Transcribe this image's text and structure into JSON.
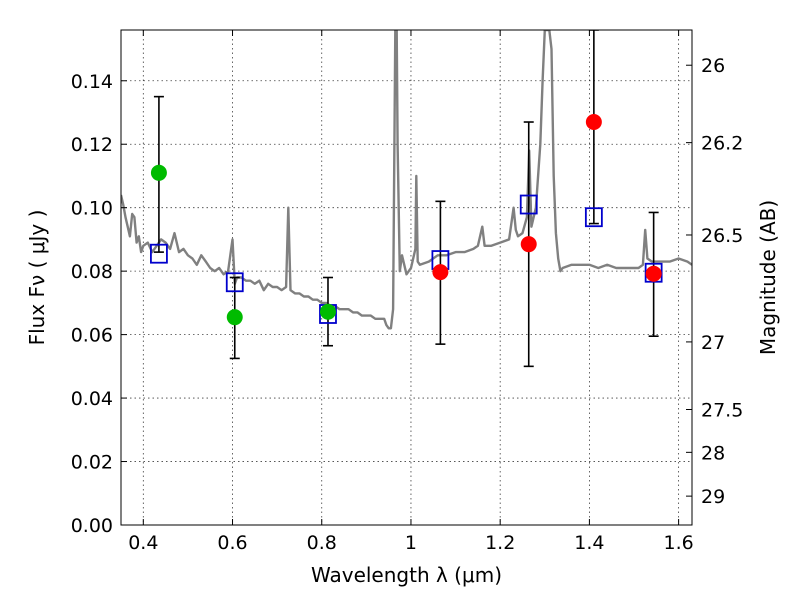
{
  "chart_data": {
    "type": "scatter",
    "xlabel": "Wavelength  λ (μm)",
    "ylabel": "Flux  Fν  ( μJy )",
    "y2label": "Magnitude (AB)",
    "xlim": [
      0.35,
      1.63
    ],
    "ylim": [
      0.0,
      0.156
    ],
    "grid": true,
    "x_ticks": [
      0.4,
      0.6,
      0.8,
      1.0,
      1.2,
      1.4,
      1.6
    ],
    "x_tick_labels": [
      "0.4",
      "0.6",
      "0.8",
      "1",
      "1.2",
      "1.4",
      "1.6"
    ],
    "y_ticks": [
      0.0,
      0.02,
      0.04,
      0.06,
      0.08,
      0.1,
      0.12,
      0.14
    ],
    "y_tick_labels": [
      "0.00",
      "0.02",
      "0.04",
      "0.06",
      "0.08",
      "0.10",
      "0.12",
      "0.14"
    ],
    "y2_ticks": [
      {
        "label": "26",
        "flux": 0.1449
      },
      {
        "label": "26.2",
        "flux": 0.1205
      },
      {
        "label": "26.5",
        "flux": 0.0914
      },
      {
        "label": "27",
        "flux": 0.0577
      },
      {
        "label": "27.5",
        "flux": 0.0364
      },
      {
        "label": "28",
        "flux": 0.0229
      },
      {
        "label": "29",
        "flux": 0.0091
      }
    ],
    "colors": {
      "green": "#00bb00",
      "red": "#ff0000",
      "model_box": "#0000cc",
      "spectrum": "#808080",
      "errorbar": "#000000"
    },
    "spectrum": [
      [
        0.35,
        0.104
      ],
      [
        0.355,
        0.101
      ],
      [
        0.36,
        0.097
      ],
      [
        0.365,
        0.094
      ],
      [
        0.37,
        0.091
      ],
      [
        0.375,
        0.098
      ],
      [
        0.38,
        0.097
      ],
      [
        0.385,
        0.089
      ],
      [
        0.39,
        0.091
      ],
      [
        0.395,
        0.086
      ],
      [
        0.4,
        0.088
      ],
      [
        0.41,
        0.089
      ],
      [
        0.42,
        0.086
      ],
      [
        0.43,
        0.088
      ],
      [
        0.44,
        0.09
      ],
      [
        0.45,
        0.089
      ],
      [
        0.46,
        0.087
      ],
      [
        0.47,
        0.092
      ],
      [
        0.48,
        0.086
      ],
      [
        0.49,
        0.087
      ],
      [
        0.5,
        0.085
      ],
      [
        0.51,
        0.084
      ],
      [
        0.52,
        0.082
      ],
      [
        0.53,
        0.085
      ],
      [
        0.54,
        0.083
      ],
      [
        0.55,
        0.081
      ],
      [
        0.56,
        0.08
      ],
      [
        0.57,
        0.081
      ],
      [
        0.58,
        0.079
      ],
      [
        0.59,
        0.08
      ],
      [
        0.6,
        0.09
      ],
      [
        0.605,
        0.076
      ],
      [
        0.61,
        0.078
      ],
      [
        0.62,
        0.078
      ],
      [
        0.63,
        0.077
      ],
      [
        0.64,
        0.077
      ],
      [
        0.65,
        0.076
      ],
      [
        0.66,
        0.077
      ],
      [
        0.67,
        0.074
      ],
      [
        0.68,
        0.076
      ],
      [
        0.69,
        0.075
      ],
      [
        0.7,
        0.075
      ],
      [
        0.71,
        0.074
      ],
      [
        0.72,
        0.075
      ],
      [
        0.725,
        0.1
      ],
      [
        0.73,
        0.074
      ],
      [
        0.74,
        0.073
      ],
      [
        0.75,
        0.073
      ],
      [
        0.76,
        0.072
      ],
      [
        0.77,
        0.072
      ],
      [
        0.78,
        0.071
      ],
      [
        0.79,
        0.071
      ],
      [
        0.8,
        0.07
      ],
      [
        0.81,
        0.07
      ],
      [
        0.82,
        0.069
      ],
      [
        0.83,
        0.069
      ],
      [
        0.84,
        0.068
      ],
      [
        0.85,
        0.068
      ],
      [
        0.86,
        0.068
      ],
      [
        0.87,
        0.067
      ],
      [
        0.88,
        0.067
      ],
      [
        0.89,
        0.066
      ],
      [
        0.9,
        0.066
      ],
      [
        0.91,
        0.066
      ],
      [
        0.92,
        0.065
      ],
      [
        0.93,
        0.065
      ],
      [
        0.94,
        0.065
      ],
      [
        0.945,
        0.063
      ],
      [
        0.95,
        0.062
      ],
      [
        0.955,
        0.062
      ],
      [
        0.96,
        0.068
      ],
      [
        0.965,
        0.156
      ],
      [
        0.968,
        0.156
      ],
      [
        0.97,
        0.12
      ],
      [
        0.975,
        0.08
      ],
      [
        0.98,
        0.085
      ],
      [
        0.99,
        0.079
      ],
      [
        1.0,
        0.081
      ],
      [
        1.01,
        0.087
      ],
      [
        1.012,
        0.11
      ],
      [
        1.015,
        0.083
      ],
      [
        1.02,
        0.082
      ],
      [
        1.04,
        0.083
      ],
      [
        1.06,
        0.085
      ],
      [
        1.08,
        0.085
      ],
      [
        1.1,
        0.086
      ],
      [
        1.12,
        0.086
      ],
      [
        1.14,
        0.087
      ],
      [
        1.15,
        0.088
      ],
      [
        1.16,
        0.094
      ],
      [
        1.165,
        0.088
      ],
      [
        1.18,
        0.088
      ],
      [
        1.2,
        0.089
      ],
      [
        1.22,
        0.09
      ],
      [
        1.23,
        0.1
      ],
      [
        1.235,
        0.093
      ],
      [
        1.24,
        0.091
      ],
      [
        1.25,
        0.092
      ],
      [
        1.26,
        0.097
      ],
      [
        1.265,
        0.118
      ],
      [
        1.27,
        0.094
      ],
      [
        1.28,
        0.1
      ],
      [
        1.29,
        0.12
      ],
      [
        1.295,
        0.14
      ],
      [
        1.3,
        0.156
      ],
      [
        1.31,
        0.156
      ],
      [
        1.315,
        0.15
      ],
      [
        1.32,
        0.11
      ],
      [
        1.325,
        0.092
      ],
      [
        1.33,
        0.084
      ],
      [
        1.335,
        0.08
      ],
      [
        1.34,
        0.081
      ],
      [
        1.36,
        0.082
      ],
      [
        1.38,
        0.082
      ],
      [
        1.4,
        0.082
      ],
      [
        1.42,
        0.081
      ],
      [
        1.44,
        0.082
      ],
      [
        1.46,
        0.081
      ],
      [
        1.48,
        0.081
      ],
      [
        1.5,
        0.081
      ],
      [
        1.51,
        0.081
      ],
      [
        1.52,
        0.082
      ],
      [
        1.525,
        0.093
      ],
      [
        1.53,
        0.084
      ],
      [
        1.54,
        0.083
      ],
      [
        1.56,
        0.083
      ],
      [
        1.58,
        0.083
      ],
      [
        1.6,
        0.084
      ],
      [
        1.62,
        0.083
      ],
      [
        1.63,
        0.082
      ]
    ],
    "observed": [
      {
        "x": 0.435,
        "y": 0.111,
        "y_low": 0.086,
        "y_high": 0.135,
        "color": "green"
      },
      {
        "x": 0.605,
        "y": 0.0655,
        "y_low": 0.0525,
        "y_high": 0.078,
        "color": "green"
      },
      {
        "x": 0.814,
        "y": 0.0672,
        "y_low": 0.0565,
        "y_high": 0.078,
        "color": "green"
      },
      {
        "x": 1.066,
        "y": 0.0797,
        "y_low": 0.057,
        "y_high": 0.102,
        "color": "red"
      },
      {
        "x": 1.264,
        "y": 0.0885,
        "y_low": 0.05,
        "y_high": 0.127,
        "color": "red"
      },
      {
        "x": 1.41,
        "y": 0.127,
        "y_low": 0.095,
        "y_high": 0.156,
        "color": "red"
      },
      {
        "x": 1.544,
        "y": 0.0792,
        "y_low": 0.0595,
        "y_high": 0.0985,
        "color": "red"
      }
    ],
    "model": [
      {
        "x": 0.435,
        "y": 0.0855
      },
      {
        "x": 0.605,
        "y": 0.0765
      },
      {
        "x": 0.814,
        "y": 0.0665
      },
      {
        "x": 1.066,
        "y": 0.0835
      },
      {
        "x": 1.264,
        "y": 0.101
      },
      {
        "x": 1.41,
        "y": 0.097
      },
      {
        "x": 1.544,
        "y": 0.0795
      }
    ]
  }
}
